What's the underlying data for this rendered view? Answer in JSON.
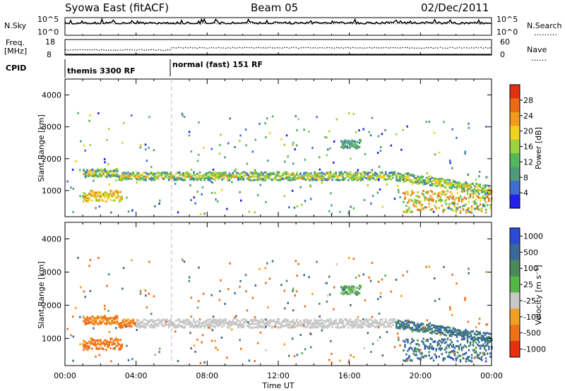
{
  "header": {
    "station": "Syowa East (fitACF)",
    "beam": "Beam 05",
    "date": "02/Dec/2011"
  },
  "panel_labels": {
    "nsky": "N.Sky",
    "nsearch": "N.Search",
    "nsearch_marker": "………",
    "freq": "Freq.",
    "freq_unit": "[MHz]",
    "nave": "Nave",
    "nave_marker": "……",
    "cpid": "CPID",
    "noise_ticks": [
      "10^5",
      "10^0"
    ],
    "noise_ticks_right": [
      "10^5",
      "10^0"
    ],
    "freq_ticks": [
      "18",
      "8"
    ],
    "nave_ticks": [
      "60",
      "0"
    ]
  },
  "cpid_modes": [
    {
      "label": "themis 3300 RF",
      "start_hour": 0
    },
    {
      "label": "normal (fast) 151 RF",
      "start_hour": 6
    }
  ],
  "chart_data": [
    {
      "type": "heatmap",
      "title": "Power",
      "ylabel": "Slant Range [km]",
      "xlabel": "Time UT",
      "x_ticks": [
        "00:00",
        "04:00",
        "08:00",
        "12:00",
        "16:00",
        "20:00",
        "00:00"
      ],
      "xlim_hours": [
        0,
        24
      ],
      "ylim": [
        180,
        4500
      ],
      "y_ticks": [
        1000,
        2000,
        3000,
        4000
      ],
      "colorbar": {
        "label": "Power [dB]",
        "ticks": [
          "4",
          "8",
          "12",
          "16",
          "20",
          "24",
          "28"
        ],
        "colors": [
          "#2222ee",
          "#3e6fd0",
          "#4f9a7a",
          "#52b85a",
          "#9cd23a",
          "#f0d21e",
          "#f29a1a",
          "#ee6a12",
          "#e23010"
        ]
      },
      "features": [
        {
          "name": "main echo band",
          "t_start": 1.0,
          "t_end": 24.0,
          "range_center_km": 1450,
          "power_dB": 16
        },
        {
          "name": "near-range enhancement",
          "t_start": 1.0,
          "t_end": 3.0,
          "range_center_km": 800,
          "power_dB": 24
        },
        {
          "name": "far patch",
          "t_start": 15.5,
          "t_end": 16.5,
          "range_center_km": 2450,
          "power_dB": 12
        },
        {
          "name": "late near-range echoes",
          "t_start": 19.0,
          "t_end": 24.0,
          "range_center_km": 600,
          "power_dB": 28
        }
      ]
    },
    {
      "type": "heatmap",
      "title": "Velocity",
      "ylabel": "Slant Range [km]",
      "xlabel": "Time UT",
      "x_ticks": [
        "00:00",
        "04:00",
        "08:00",
        "12:00",
        "16:00",
        "20:00",
        "00:00"
      ],
      "xlim_hours": [
        0,
        24
      ],
      "ylim": [
        180,
        4500
      ],
      "y_ticks": [
        1000,
        2000,
        3000,
        4000
      ],
      "colorbar": {
        "label": "Velocity [m s⁻¹]",
        "ticks": [
          "1000",
          "500",
          "100",
          "25",
          "-25",
          "-100",
          "-500",
          "-1000"
        ],
        "colors": [
          "#2a4bd8",
          "#3a6a9a",
          "#4a8a5a",
          "#55b845",
          "#c8c8c8",
          "#f0a020",
          "#f07018",
          "#e83010"
        ]
      },
      "features": [
        {
          "name": "ground scatter band",
          "t_start": 3.0,
          "t_end": 18.5,
          "range_center_km": 1450,
          "velocity_ms": 0
        },
        {
          "name": "early negative-velocity echoes",
          "t_start": 1.0,
          "t_end": 4.0,
          "range_center_km": 1100,
          "velocity_ms": -100
        },
        {
          "name": "late positive-velocity echoes",
          "t_start": 18.5,
          "t_end": 24.0,
          "range_center_km": 900,
          "velocity_ms": 300
        }
      ]
    }
  ]
}
